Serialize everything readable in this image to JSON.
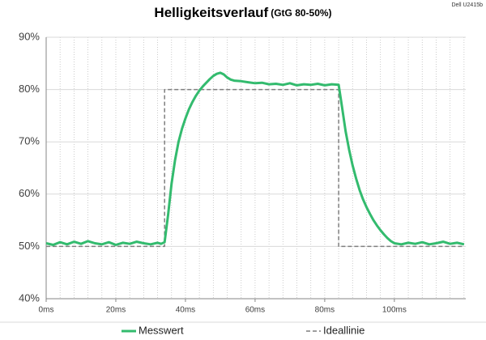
{
  "chart_data": {
    "type": "line",
    "title": "Helligkeitsverlauf",
    "subtitle": "(GtG 80-50%)",
    "annotation": "Dell U2415b",
    "xlim": [
      0,
      120.5
    ],
    "ylim": [
      40,
      90
    ],
    "xticks": [
      {
        "value": 0,
        "label": "0ms"
      },
      {
        "value": 20,
        "label": "20ms"
      },
      {
        "value": 40,
        "label": "40ms"
      },
      {
        "value": 60,
        "label": "60ms"
      },
      {
        "value": 80,
        "label": "80ms"
      },
      {
        "value": 100,
        "label": "100ms"
      }
    ],
    "yticks": [
      {
        "value": 40,
        "label": "40%"
      },
      {
        "value": 50,
        "label": "50%"
      },
      {
        "value": 60,
        "label": "60%"
      },
      {
        "value": 70,
        "label": "70%"
      },
      {
        "value": 80,
        "label": "80%"
      },
      {
        "value": 90,
        "label": "90%"
      }
    ],
    "grid": true,
    "minor_grid_step": 4,
    "legend": "bottom",
    "series": [
      {
        "name": "Messwert",
        "color": "#33bb6e",
        "dashed": false,
        "x": [
          0,
          2,
          4,
          6,
          8,
          10,
          12,
          14,
          16,
          18,
          20,
          22,
          24,
          26,
          28,
          30,
          32,
          33,
          34,
          35,
          36,
          37,
          38,
          39,
          40,
          41,
          42,
          43,
          44,
          45,
          46,
          47,
          48,
          49,
          50,
          51,
          52,
          53,
          54,
          56,
          58,
          60,
          62,
          64,
          66,
          68,
          70,
          72,
          74,
          76,
          78,
          80,
          82,
          84,
          85,
          86,
          87,
          88,
          89,
          90,
          91,
          92,
          93,
          94,
          95,
          96,
          97,
          98,
          99,
          100,
          102,
          104,
          106,
          108,
          110,
          112,
          114,
          116,
          118,
          120
        ],
        "values": [
          50.6,
          50.3,
          50.8,
          50.4,
          50.9,
          50.5,
          51.0,
          50.6,
          50.4,
          50.8,
          50.3,
          50.7,
          50.5,
          50.9,
          50.6,
          50.4,
          50.7,
          50.5,
          50.8,
          56,
          62,
          66.5,
          70,
          72.5,
          74.5,
          76.2,
          77.6,
          78.8,
          79.8,
          80.6,
          81.3,
          82,
          82.6,
          83,
          83.2,
          82.9,
          82.3,
          81.9,
          81.7,
          81.6,
          81.4,
          81.2,
          81.3,
          81,
          81.1,
          80.9,
          81.2,
          80.8,
          81,
          80.9,
          81.1,
          80.8,
          81,
          80.9,
          76.5,
          72,
          68.5,
          65.5,
          63,
          60.8,
          59,
          57.5,
          56.2,
          55,
          54,
          53.1,
          52.3,
          51.6,
          51,
          50.6,
          50.4,
          50.7,
          50.5,
          50.8,
          50.4,
          50.6,
          50.9,
          50.5,
          50.7,
          50.4
        ]
      },
      {
        "name": "Ideallinie",
        "color": "#7f7f7f",
        "dashed": true,
        "x": [
          0,
          34,
          34,
          84,
          84,
          120
        ],
        "values": [
          50,
          50,
          80,
          80,
          50,
          50
        ]
      }
    ]
  }
}
